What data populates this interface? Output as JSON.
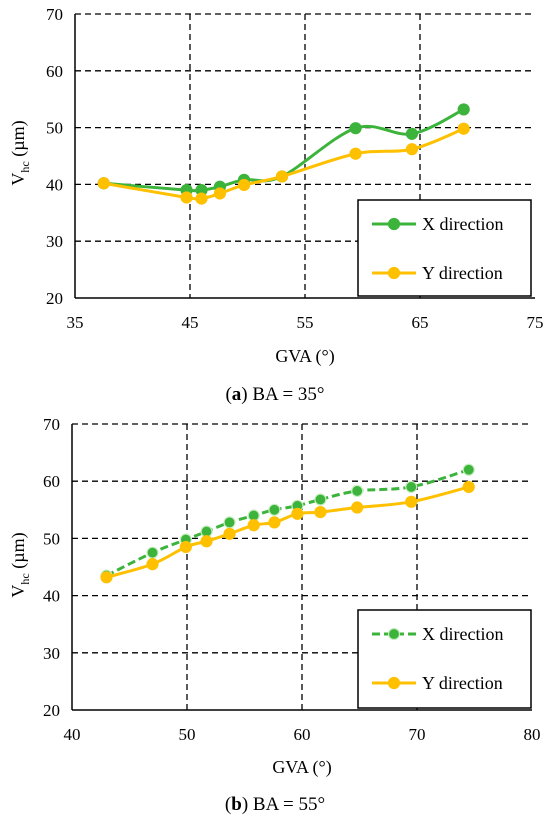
{
  "chart_data": [
    {
      "type": "line",
      "caption_letter": "(a)",
      "caption_rest": "BA = 35°",
      "xlabel": "GVA (°)",
      "ylabel_main": "V",
      "ylabel_sub": "hc",
      "ylabel_unit": " (µm)",
      "xlim": [
        35,
        75
      ],
      "ylim": [
        20,
        70
      ],
      "xticks": [
        "35",
        "45",
        "55",
        "65",
        "75"
      ],
      "yticks": [
        "20",
        "30",
        "40",
        "50",
        "60",
        "70"
      ],
      "grid": "dashed",
      "legend_position": "bottom-right",
      "series": [
        {
          "name": "X direction",
          "color": "#3cb43c",
          "x": [
            37.5,
            44.7,
            46.0,
            47.6,
            49.7,
            53.0,
            59.4,
            64.3,
            68.8
          ],
          "y": [
            40.2,
            39.0,
            39.0,
            39.6,
            40.8,
            41.4,
            49.9,
            48.9,
            53.2
          ]
        },
        {
          "name": "Y direction",
          "color": "#ffc000",
          "x": [
            37.5,
            44.7,
            46.0,
            47.6,
            49.7,
            53.0,
            59.4,
            64.3,
            68.8
          ],
          "y": [
            40.2,
            37.7,
            37.5,
            38.4,
            39.9,
            41.4,
            45.4,
            46.2,
            49.8
          ]
        }
      ]
    },
    {
      "type": "line",
      "caption_letter": "(b)",
      "caption_rest": "BA = 55°",
      "xlabel": "GVA (°)",
      "ylabel_main": "V",
      "ylabel_sub": "hc",
      "ylabel_unit": " (µm)",
      "xlim": [
        40,
        80
      ],
      "ylim": [
        20,
        70
      ],
      "xticks": [
        "40",
        "50",
        "60",
        "70",
        "80"
      ],
      "yticks": [
        "20",
        "30",
        "40",
        "50",
        "60",
        "70"
      ],
      "grid": "dashed",
      "legend_position": "bottom-right",
      "series": [
        {
          "name": "X direction",
          "color": "#3cb43c",
          "style": "dashed",
          "x": [
            43.0,
            47.0,
            49.9,
            51.7,
            53.7,
            55.8,
            57.6,
            59.6,
            61.6,
            64.8,
            69.5,
            74.5
          ],
          "y": [
            43.5,
            47.5,
            49.8,
            51.2,
            52.8,
            54.0,
            55.0,
            55.7,
            56.8,
            58.3,
            59.0,
            62.0
          ]
        },
        {
          "name": "Y direction",
          "color": "#ffc000",
          "style": "solid",
          "x": [
            43.0,
            47.0,
            49.9,
            51.7,
            53.7,
            55.8,
            57.6,
            59.6,
            61.6,
            64.8,
            69.5,
            74.5
          ],
          "y": [
            43.2,
            45.5,
            48.5,
            49.5,
            50.8,
            52.3,
            52.8,
            54.3,
            54.6,
            55.4,
            56.4,
            59.0
          ]
        }
      ]
    }
  ]
}
